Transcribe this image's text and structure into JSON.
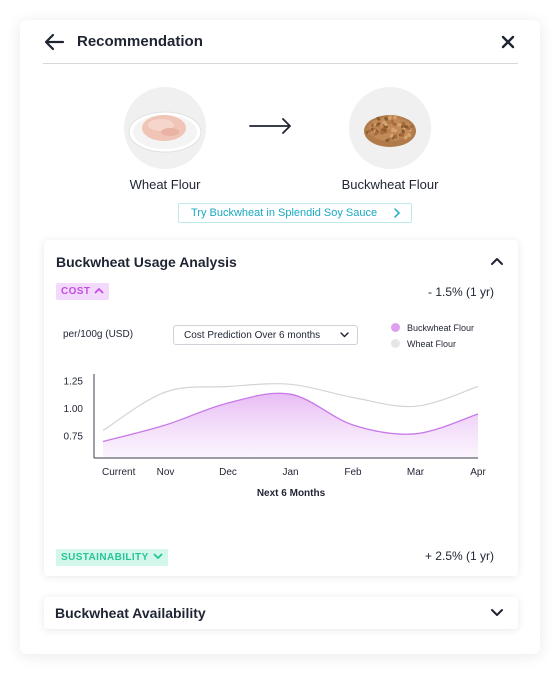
{
  "header": {
    "title": "Recommendation"
  },
  "from_ingredient": {
    "label": "Wheat Flour"
  },
  "to_ingredient": {
    "label": "Buckwheat Flour"
  },
  "try_link": {
    "label": "Try Buckwheat in Splendid Soy Sauce"
  },
  "usage_card": {
    "title": "Buckwheat Usage Analysis",
    "cost": {
      "badge": "COST",
      "change": "- 1.5% (1 yr)"
    },
    "sustainability": {
      "badge": "SUSTAINABILITY",
      "change": "+ 2.5% (1 yr)"
    },
    "unit_label": "per/100g (USD)",
    "prediction_select": {
      "value": "Cost Prediction Over 6 months"
    }
  },
  "availability_card": {
    "title": "Buckwheat Availability"
  },
  "colors": {
    "buckwheat_series": "#c878e8",
    "wheat_series": "#d4d4d6",
    "cost_badge_bg": "#f3d9fb",
    "sustainability_badge_bg": "#d4f7ec",
    "link": "#1aa9c2"
  },
  "icons": {
    "back": "arrow-left-icon",
    "close": "close-icon",
    "arrow": "arrow-right-icon",
    "expand": "chevron-down-icon",
    "collapse": "chevron-up-icon"
  },
  "chart_data": {
    "type": "area",
    "categories": [
      "Current",
      "Nov",
      "Dec",
      "Jan",
      "Feb",
      "Mar",
      "Apr"
    ],
    "xlabel": "Next 6 Months",
    "ylabel": "per/100g (USD)",
    "yticks": [
      0.75,
      1.0,
      1.25
    ],
    "ylim": [
      0.55,
      1.35
    ],
    "grid": false,
    "legend_position": "top-right",
    "series": [
      {
        "name": "Buckwheat Flour",
        "values": [
          0.7,
          0.85,
          1.05,
          1.13,
          0.85,
          0.77,
          0.95
        ]
      },
      {
        "name": "Wheat Flour",
        "values": [
          0.8,
          1.15,
          1.2,
          1.22,
          1.1,
          1.02,
          1.2
        ]
      }
    ]
  }
}
